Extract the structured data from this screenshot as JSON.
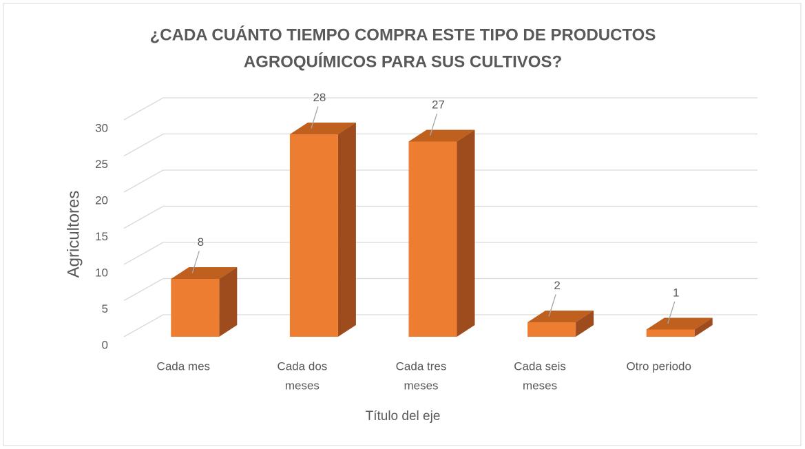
{
  "chart_data": {
    "type": "bar3d",
    "title": [
      "¿CADA CUÁNTO TIEMPO COMPRA ESTE TIPO DE PRODUCTOS",
      "AGROQUÍMICOS PARA SUS CULTIVOS?"
    ],
    "categories": [
      [
        "Cada mes"
      ],
      [
        "Cada dos",
        "meses"
      ],
      [
        "Cada tres",
        "meses"
      ],
      [
        "Cada seis",
        "meses"
      ],
      [
        "Otro periodo"
      ]
    ],
    "values": [
      8,
      28,
      27,
      2,
      1
    ],
    "color": "#ED7D31",
    "ylim": [
      0,
      30
    ],
    "yticks": [
      0,
      5,
      10,
      15,
      20,
      25,
      30
    ],
    "ylabel": "Agricultores",
    "xlabel": "Título del eje",
    "grid": true
  }
}
